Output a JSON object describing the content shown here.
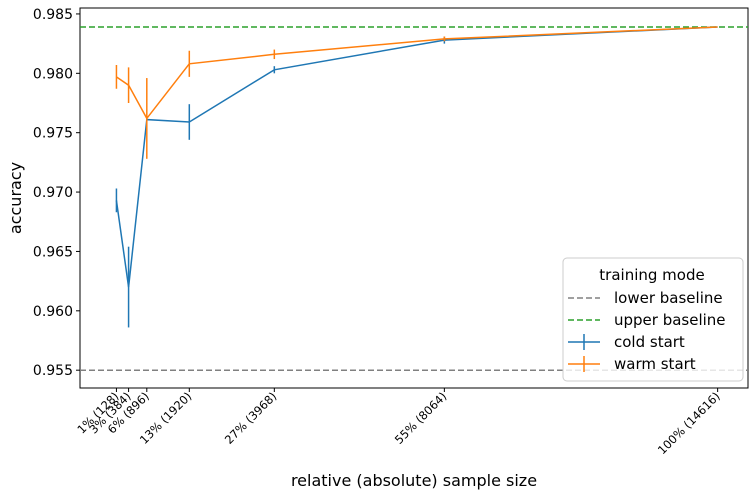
{
  "chart_data": {
    "type": "line",
    "xlabel": "relative (absolute) sample size",
    "ylabel": "accuracy",
    "ylim": [
      0.9535,
      0.9855
    ],
    "xlim": [
      -5,
      105
    ],
    "yticks": [
      0.955,
      0.96,
      0.965,
      0.97,
      0.975,
      0.98,
      0.985
    ],
    "ytick_labels": [
      "0.955",
      "0.960",
      "0.965",
      "0.970",
      "0.975",
      "0.980",
      "0.985"
    ],
    "x": [
      1,
      3,
      6,
      13,
      27,
      55,
      100
    ],
    "xtick_labels": [
      "1% (128)",
      "3% (384)",
      "6% (896)",
      "13% (1920)",
      "27% (3968)",
      "55% (8064)",
      "100% (14616)"
    ],
    "baselines": [
      {
        "name": "lower baseline",
        "value": 0.955,
        "color": "#808080"
      },
      {
        "name": "upper baseline",
        "value": 0.9839,
        "color": "#2ca02c"
      }
    ],
    "series": [
      {
        "name": "cold start",
        "color": "#1f77b4",
        "values": [
          0.9693,
          0.962,
          0.9761,
          0.9759,
          0.9803,
          0.9828,
          0.9839
        ],
        "errors": [
          0.001,
          0.0034,
          0.0,
          0.0015,
          0.0003,
          0.0003,
          0.0
        ]
      },
      {
        "name": "warm start",
        "color": "#ff7f0e",
        "values": [
          0.9797,
          0.979,
          0.9762,
          0.9808,
          0.9816,
          0.9829,
          0.9839
        ],
        "errors": [
          0.001,
          0.0015,
          0.0034,
          0.0011,
          0.0004,
          0.0002,
          0.0
        ]
      }
    ],
    "legend": {
      "title": "training mode",
      "position": "lower-right"
    },
    "grid": false
  }
}
